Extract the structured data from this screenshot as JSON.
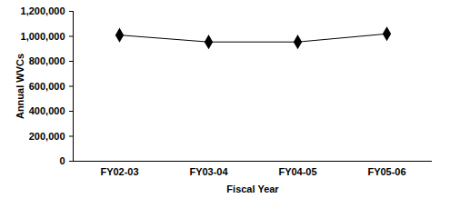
{
  "chart_data": {
    "type": "line",
    "x_label": "Fiscal Year",
    "y_label": "Annual WVCs",
    "categories": [
      "FY02-03",
      "FY03-04",
      "FY04-05",
      "FY05-06"
    ],
    "values": [
      1010000,
      955000,
      955000,
      1020000
    ],
    "color": "#000000",
    "marker": "diamond",
    "ylim": [
      0,
      1200000
    ],
    "yticks": [
      0,
      {
        "value": 200000,
        "label": "200,000"
      },
      {
        "value": 400000,
        "label": "400,000"
      },
      {
        "value": 600000,
        "label": "600,000"
      },
      {
        "value": 800000,
        "label": "800,000"
      },
      {
        "value": 1000000,
        "label": "1,000,000"
      },
      {
        "value": 1200000,
        "label": "1,200,000"
      }
    ],
    "grid": false
  }
}
